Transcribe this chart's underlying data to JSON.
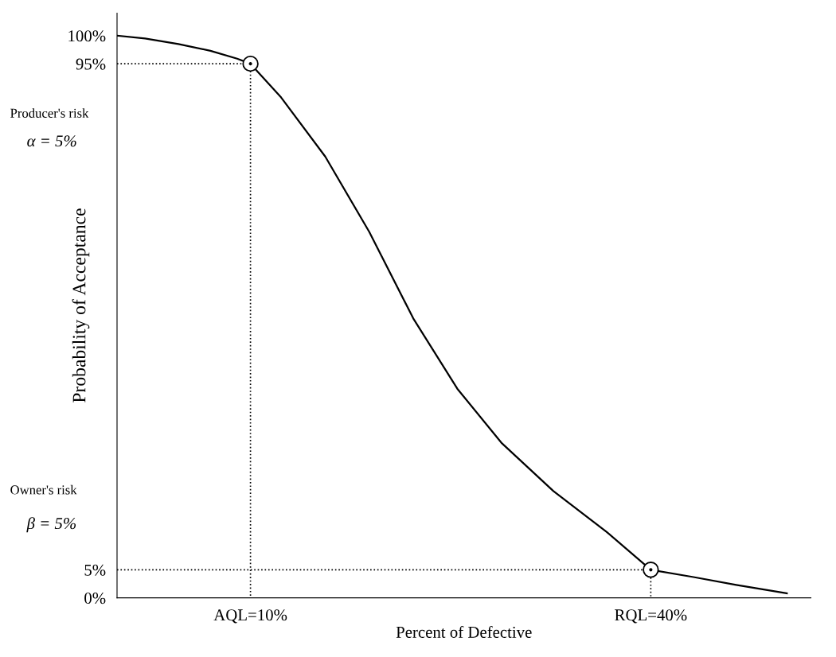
{
  "chart_data": {
    "type": "line",
    "xlabel": "Percent of Defective",
    "ylabel": "Probability of Acceptance",
    "xlim": [
      0,
      52
    ],
    "ylim": [
      0,
      104
    ],
    "xticks": [
      {
        "value": 10,
        "label": "AQL=10%"
      },
      {
        "value": 40,
        "label": "RQL=40%"
      }
    ],
    "yticks": [
      {
        "value": 0,
        "label": "0%"
      },
      {
        "value": 5,
        "label": "5%"
      },
      {
        "value": 95,
        "label": "95%"
      },
      {
        "value": 100,
        "label": "100%"
      }
    ],
    "annotations": [
      "Producer's risk",
      "α = 5%",
      "Owner's risk",
      "β = 5%"
    ],
    "grid": false,
    "legend": false,
    "series": [
      {
        "color": "#000000",
        "marker": "none",
        "line_style": "solid",
        "x": [
          0,
          2.1,
          4.6,
          7.0,
          9.0,
          10,
          12.3,
          15.6,
          18.9,
          22.2,
          25.5,
          28.8,
          32.7,
          36.7,
          40,
          43.2,
          46.4,
          50.2
        ],
        "values": [
          100,
          99.5,
          98.5,
          97.3,
          95.9,
          95,
          89.0,
          78.5,
          65.1,
          49.7,
          37.2,
          27.6,
          19.0,
          11.7,
          5,
          3.7,
          2.3,
          0.8
        ]
      },
      {
        "color": "#000000",
        "marker": "none",
        "line_style": "dotted",
        "x": [
          0,
          10,
          10
        ],
        "values": [
          95,
          95,
          0
        ]
      },
      {
        "color": "#000000",
        "marker": "none",
        "line_style": "dotted",
        "x": [
          0,
          40,
          40
        ],
        "values": [
          5,
          5,
          0
        ]
      },
      {
        "type": "scatter",
        "color": "#000000",
        "marker": "circle",
        "x": [
          10,
          40
        ],
        "values": [
          95,
          5
        ]
      }
    ]
  }
}
